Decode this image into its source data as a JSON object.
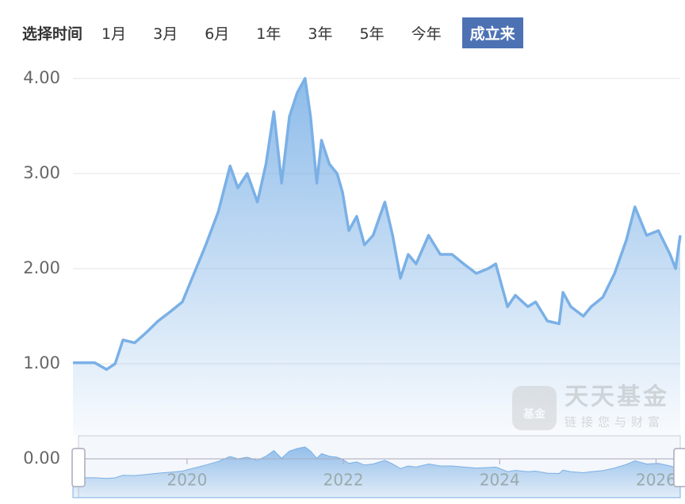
{
  "controls": {
    "label": "选择时间",
    "ranges": [
      {
        "label": "1月"
      },
      {
        "label": "3月"
      },
      {
        "label": "6月"
      },
      {
        "label": "1年"
      },
      {
        "label": "3年"
      },
      {
        "label": "5年"
      },
      {
        "label": "今年"
      },
      {
        "label": "成立来",
        "selected": true
      }
    ]
  },
  "watermark": {
    "logo": "基金",
    "name": "天天基金",
    "slogan": "链接您与财富"
  },
  "chart_data": {
    "type": "area",
    "color": "#7ab0e6",
    "grid": true,
    "xlim": [
      2018.54,
      2026.31
    ],
    "xticks": [
      2020,
      2022,
      2024,
      2026
    ],
    "ylim": [
      0,
      4
    ],
    "yticks": [
      {
        "value": 0,
        "label": "0.00"
      },
      {
        "value": 1,
        "label": "1.00"
      },
      {
        "value": 2,
        "label": "2.00"
      },
      {
        "value": 3,
        "label": "3.00"
      },
      {
        "value": 4,
        "label": "4.00"
      }
    ],
    "x": [
      2018.54,
      2018.82,
      2018.97,
      2019.08,
      2019.18,
      2019.33,
      2019.48,
      2019.63,
      2019.79,
      2019.94,
      2020.09,
      2020.24,
      2020.4,
      2020.55,
      2020.65,
      2020.77,
      2020.9,
      2021.01,
      2021.11,
      2021.21,
      2021.31,
      2021.41,
      2021.51,
      2021.58,
      2021.66,
      2021.72,
      2021.82,
      2021.92,
      2021.99,
      2022.07,
      2022.17,
      2022.27,
      2022.38,
      2022.53,
      2022.63,
      2022.73,
      2022.83,
      2022.93,
      2023.09,
      2023.24,
      2023.39,
      2023.54,
      2023.7,
      2023.85,
      2023.95,
      2024.1,
      2024.2,
      2024.36,
      2024.46,
      2024.61,
      2024.76,
      2024.81,
      2024.91,
      2025.07,
      2025.17,
      2025.32,
      2025.47,
      2025.62,
      2025.73,
      2025.88,
      2026.03,
      2026.18,
      2026.25,
      2026.31
    ],
    "values": [
      1.01,
      1.01,
      0.94,
      1.0,
      1.25,
      1.22,
      1.33,
      1.45,
      1.55,
      1.65,
      1.95,
      2.25,
      2.6,
      3.08,
      2.85,
      3.0,
      2.7,
      3.1,
      3.65,
      2.9,
      3.6,
      3.85,
      4.0,
      3.6,
      2.9,
      3.35,
      3.1,
      3.0,
      2.8,
      2.4,
      2.55,
      2.25,
      2.35,
      2.7,
      2.35,
      1.9,
      2.15,
      2.05,
      2.35,
      2.15,
      2.15,
      2.05,
      1.95,
      2.0,
      2.05,
      1.6,
      1.72,
      1.6,
      1.65,
      1.45,
      1.42,
      1.75,
      1.6,
      1.5,
      1.6,
      1.7,
      1.95,
      2.3,
      2.65,
      2.35,
      2.4,
      2.15,
      2.0,
      2.35
    ]
  }
}
